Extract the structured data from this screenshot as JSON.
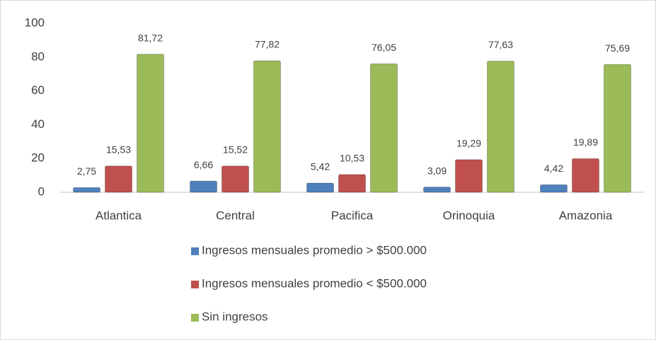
{
  "chart_data": {
    "type": "bar",
    "categories": [
      "Atlantica",
      "Central",
      "Pacifica",
      "Orinoquia",
      "Amazonia"
    ],
    "series": [
      {
        "name": "Ingresos mensuales promedio > $500.000",
        "color": "#4f81bd",
        "values": [
          2.75,
          6.66,
          5.42,
          3.09,
          4.42
        ],
        "value_labels": [
          "2,75",
          "6,66",
          "5,42",
          "3,09",
          "4,42"
        ]
      },
      {
        "name": "Ingresos mensuales promedio < $500.000",
        "color": "#c0504d",
        "values": [
          15.53,
          15.52,
          10.53,
          19.29,
          19.89
        ],
        "value_labels": [
          "15,53",
          "15,52",
          "10,53",
          "19,29",
          "19,89"
        ]
      },
      {
        "name": "Sin ingresos",
        "color": "#9bbb59",
        "values": [
          81.72,
          77.82,
          76.05,
          77.63,
          75.69
        ],
        "value_labels": [
          "81,72",
          "77,82",
          "76,05",
          "77,63",
          "75,69"
        ]
      }
    ],
    "ylim": [
      0,
      100
    ],
    "yticks": [
      0,
      20,
      40,
      60,
      80,
      100
    ],
    "grid": false,
    "legend": "bottom"
  }
}
